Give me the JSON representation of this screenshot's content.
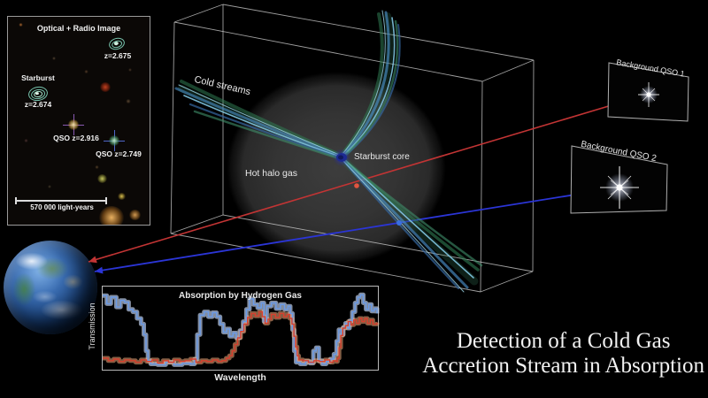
{
  "inset": {
    "title": "Optical + Radio Image",
    "labels": {
      "galaxy_top_z": "z=2.675",
      "starburst": "Starburst",
      "starburst_z": "z=2.674",
      "qso1": "QSO z=2.916",
      "qso2": "QSO z=2.749",
      "scalebar": "570 000 light-years"
    }
  },
  "diagram": {
    "cold_streams": "Cold streams",
    "hot_halo": "Hot halo gas",
    "starburst_core": "Starburst core",
    "qso_panel_1": "Background QSO 1",
    "qso_panel_2": "Background QSO 2",
    "sightline_colors": {
      "qso1_red": "#c23434",
      "qso2_blue": "#2b35d6"
    }
  },
  "caption": {
    "line1": "Detection of a Cold Gas",
    "line2": "Accretion Stream in Absorption"
  },
  "chart_data": {
    "type": "line",
    "title": "Absorption by Hydrogen Gas",
    "xlabel": "Wavelength",
    "ylabel": "Transmission",
    "x_range": [
      0,
      1
    ],
    "y_range": [
      0,
      1
    ],
    "grid": false,
    "legend": "none",
    "series": [
      {
        "name": "blue (QSO 2 sightline)",
        "color": "#6b9be8",
        "band_color": "rgba(200,216,246,0.65)",
        "points": [
          [
            0.0,
            0.9
          ],
          [
            0.015,
            0.8
          ],
          [
            0.03,
            0.88
          ],
          [
            0.05,
            0.76
          ],
          [
            0.065,
            0.84
          ],
          [
            0.08,
            0.82
          ],
          [
            0.095,
            0.73
          ],
          [
            0.11,
            0.7
          ],
          [
            0.125,
            0.62
          ],
          [
            0.14,
            0.55
          ],
          [
            0.15,
            0.42
          ],
          [
            0.158,
            0.22
          ],
          [
            0.165,
            0.1
          ],
          [
            0.175,
            0.06
          ],
          [
            0.2,
            0.05
          ],
          [
            0.23,
            0.08
          ],
          [
            0.26,
            0.05
          ],
          [
            0.29,
            0.07
          ],
          [
            0.32,
            0.06
          ],
          [
            0.335,
            0.12
          ],
          [
            0.345,
            0.42
          ],
          [
            0.355,
            0.66
          ],
          [
            0.37,
            0.7
          ],
          [
            0.385,
            0.64
          ],
          [
            0.4,
            0.69
          ],
          [
            0.415,
            0.64
          ],
          [
            0.428,
            0.55
          ],
          [
            0.44,
            0.45
          ],
          [
            0.452,
            0.49
          ],
          [
            0.463,
            0.4
          ],
          [
            0.475,
            0.44
          ],
          [
            0.487,
            0.38
          ],
          [
            0.5,
            0.47
          ],
          [
            0.512,
            0.58
          ],
          [
            0.524,
            0.73
          ],
          [
            0.535,
            0.86
          ],
          [
            0.55,
            0.79
          ],
          [
            0.565,
            0.75
          ],
          [
            0.578,
            0.81
          ],
          [
            0.588,
            0.58
          ],
          [
            0.598,
            0.77
          ],
          [
            0.615,
            0.81
          ],
          [
            0.632,
            0.74
          ],
          [
            0.648,
            0.79
          ],
          [
            0.663,
            0.73
          ],
          [
            0.675,
            0.77
          ],
          [
            0.684,
            0.68
          ],
          [
            0.692,
            0.48
          ],
          [
            0.698,
            0.22
          ],
          [
            0.705,
            0.08
          ],
          [
            0.72,
            0.06
          ],
          [
            0.74,
            0.09
          ],
          [
            0.755,
            0.07
          ],
          [
            0.768,
            0.22
          ],
          [
            0.778,
            0.26
          ],
          [
            0.788,
            0.1
          ],
          [
            0.8,
            0.06
          ],
          [
            0.815,
            0.09
          ],
          [
            0.83,
            0.12
          ],
          [
            0.843,
            0.18
          ],
          [
            0.853,
            0.34
          ],
          [
            0.861,
            0.48
          ],
          [
            0.869,
            0.42
          ],
          [
            0.877,
            0.51
          ],
          [
            0.885,
            0.56
          ],
          [
            0.893,
            0.5
          ],
          [
            0.9,
            0.59
          ],
          [
            0.91,
            0.7
          ],
          [
            0.92,
            0.81
          ],
          [
            0.93,
            0.88
          ],
          [
            0.94,
            0.91
          ],
          [
            0.95,
            0.81
          ],
          [
            0.96,
            0.73
          ],
          [
            0.97,
            0.79
          ],
          [
            0.98,
            0.71
          ],
          [
            0.99,
            0.74
          ],
          [
            1.0,
            0.68
          ]
        ]
      },
      {
        "name": "red (QSO 1 sightline)",
        "color": "#d8402e",
        "band_color": "rgba(243,172,124,0.55)",
        "points": [
          [
            0.0,
            0.13
          ],
          [
            0.02,
            0.1
          ],
          [
            0.04,
            0.12
          ],
          [
            0.06,
            0.09
          ],
          [
            0.08,
            0.11
          ],
          [
            0.1,
            0.1
          ],
          [
            0.12,
            0.08
          ],
          [
            0.14,
            0.11
          ],
          [
            0.16,
            0.09
          ],
          [
            0.18,
            0.11
          ],
          [
            0.2,
            0.07
          ],
          [
            0.22,
            0.1
          ],
          [
            0.24,
            0.08
          ],
          [
            0.26,
            0.11
          ],
          [
            0.28,
            0.09
          ],
          [
            0.3,
            0.1
          ],
          [
            0.32,
            0.12
          ],
          [
            0.34,
            0.08
          ],
          [
            0.36,
            0.1
          ],
          [
            0.38,
            0.09
          ],
          [
            0.4,
            0.11
          ],
          [
            0.42,
            0.09
          ],
          [
            0.435,
            0.1
          ],
          [
            0.45,
            0.13
          ],
          [
            0.462,
            0.16
          ],
          [
            0.472,
            0.22
          ],
          [
            0.482,
            0.3
          ],
          [
            0.492,
            0.38
          ],
          [
            0.503,
            0.46
          ],
          [
            0.515,
            0.55
          ],
          [
            0.528,
            0.63
          ],
          [
            0.542,
            0.68
          ],
          [
            0.556,
            0.65
          ],
          [
            0.57,
            0.7
          ],
          [
            0.582,
            0.64
          ],
          [
            0.592,
            0.56
          ],
          [
            0.603,
            0.61
          ],
          [
            0.615,
            0.67
          ],
          [
            0.63,
            0.63
          ],
          [
            0.645,
            0.68
          ],
          [
            0.66,
            0.64
          ],
          [
            0.672,
            0.67
          ],
          [
            0.682,
            0.62
          ],
          [
            0.69,
            0.55
          ],
          [
            0.697,
            0.4
          ],
          [
            0.703,
            0.27
          ],
          [
            0.709,
            0.16
          ],
          [
            0.715,
            0.11
          ],
          [
            0.73,
            0.1
          ],
          [
            0.75,
            0.08
          ],
          [
            0.77,
            0.1
          ],
          [
            0.79,
            0.09
          ],
          [
            0.81,
            0.11
          ],
          [
            0.828,
            0.08
          ],
          [
            0.84,
            0.1
          ],
          [
            0.85,
            0.09
          ],
          [
            0.856,
            0.13
          ],
          [
            0.862,
            0.26
          ],
          [
            0.868,
            0.41
          ],
          [
            0.875,
            0.5
          ],
          [
            0.885,
            0.53
          ],
          [
            0.895,
            0.58
          ],
          [
            0.905,
            0.54
          ],
          [
            0.915,
            0.6
          ],
          [
            0.925,
            0.56
          ],
          [
            0.935,
            0.62
          ],
          [
            0.945,
            0.58
          ],
          [
            0.955,
            0.62
          ],
          [
            0.965,
            0.56
          ],
          [
            0.975,
            0.6
          ],
          [
            0.985,
            0.55
          ],
          [
            1.0,
            0.57
          ]
        ]
      }
    ]
  }
}
